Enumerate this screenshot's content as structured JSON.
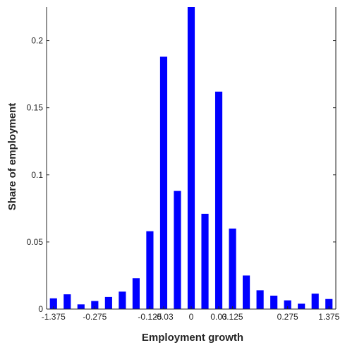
{
  "chart_data": {
    "type": "bar",
    "title": "",
    "xlabel": "Employment growth",
    "ylabel": "Share of employment",
    "ylim": [
      0,
      0.225
    ],
    "yticks": [
      0,
      0.05,
      0.1,
      0.15,
      0.2
    ],
    "ytick_labels": [
      "0",
      "0.05",
      "0.1",
      "0.15",
      "0.2"
    ],
    "xtick_labels": [
      "-1.375",
      "-0.275",
      "-0.125",
      "-0.03",
      "0",
      "0.03",
      "0.125",
      "0.275",
      "1.375"
    ],
    "xtick_bar_index": [
      0,
      3,
      7,
      8,
      10,
      12,
      13,
      17,
      20
    ],
    "grid": false,
    "bar_color": "#0000ff",
    "axis_color": "#262626",
    "values": [
      0.008,
      0.011,
      0.0035,
      0.006,
      0.009,
      0.013,
      0.023,
      0.058,
      0.188,
      0.088,
      0.225,
      0.071,
      0.162,
      0.06,
      0.025,
      0.014,
      0.01,
      0.0065,
      0.004,
      0.0115,
      0.0075
    ]
  }
}
